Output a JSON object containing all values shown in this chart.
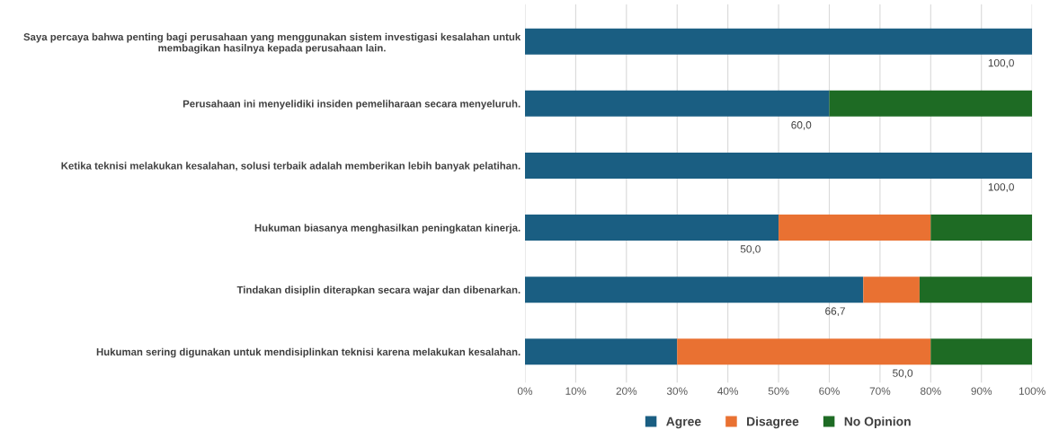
{
  "chart_data": {
    "type": "bar",
    "orientation": "horizontal",
    "stacked": true,
    "categories": [
      "Saya percaya bahwa penting bagi perusahaan yang menggunakan sistem investigasi kesalahan untuk\nmembagikan hasilnya kepada perusahaan lain.",
      "Perusahaan ini menyelidiki insiden pemeliharaan secara menyeluruh.",
      "Ketika teknisi melakukan kesalahan, solusi terbaik adalah memberikan lebih banyak pelatihan.",
      "Hukuman biasanya menghasilkan peningkatan kinerja.",
      "Tindakan disiplin diterapkan secara wajar dan dibenarkan.",
      "Hukuman sering digunakan untuk mendisiplinkan teknisi karena melakukan kesalahan."
    ],
    "series": [
      {
        "name": "Agree",
        "color": "#1a5e82",
        "values": [
          100,
          60,
          100,
          50,
          66.7,
          30
        ],
        "value_labels": [
          "100,0",
          "60,0",
          "100,0",
          "50,0",
          "66,7",
          null
        ]
      },
      {
        "name": "Disagree",
        "color": "#e97132",
        "values": [
          0,
          0,
          0,
          30,
          11.1,
          50
        ],
        "value_labels": [
          null,
          null,
          null,
          null,
          null,
          "50,0"
        ]
      },
      {
        "name": "No Opinion",
        "color": "#1e6b24",
        "values": [
          0,
          40,
          0,
          20,
          22.2,
          20
        ]
      }
    ],
    "xlim": [
      0,
      100
    ],
    "xticks": [
      {
        "value": 0,
        "label": "0%"
      },
      {
        "value": 10,
        "label": "10%"
      },
      {
        "value": 20,
        "label": "20%"
      },
      {
        "value": 30,
        "label": "30%"
      },
      {
        "value": 40,
        "label": "40%"
      },
      {
        "value": 50,
        "label": "50%"
      },
      {
        "value": 60,
        "label": "60%"
      },
      {
        "value": 70,
        "label": "70%"
      },
      {
        "value": 80,
        "label": "80%"
      },
      {
        "value": 90,
        "label": "90%"
      },
      {
        "value": 100,
        "label": "100%"
      }
    ],
    "grid": "x",
    "legend": "bottom"
  }
}
